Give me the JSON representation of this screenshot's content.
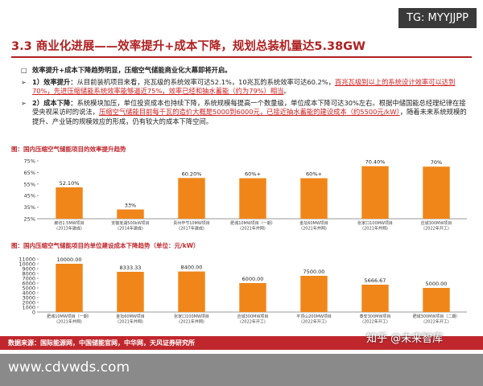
{
  "watermark_top": "TG: MYYJJPP",
  "header": {
    "title": "3.3 商业化进展——效率提升+成本下降，规划总装机量达5.38GW"
  },
  "bullets": [
    {
      "marker": "square",
      "segments": [
        {
          "text": "效率提升+成本下降趋势明显，压缩空气储能商业化大幕即将开启。",
          "style": "bold"
        }
      ]
    },
    {
      "marker": "arrow",
      "segments": [
        {
          "text": "1）效率提升：",
          "style": "bold"
        },
        {
          "text": "从目前装机项目来看，兆瓦级的系统效率可达52.1%，10兆瓦的系统效率可达60.2%，",
          "style": "normal"
        },
        {
          "text": "百兆瓦级别以上的系统设计效率可以达到70%，先进压缩储能系统效率能够逼近75%，效率已经和抽水蓄能（约为79%）相当",
          "style": "red"
        },
        {
          "text": "。",
          "style": "normal"
        }
      ]
    },
    {
      "marker": "arrow",
      "segments": [
        {
          "text": "2）成本下降：",
          "style": "bold"
        },
        {
          "text": "系统模块加压，单位投资成本也持续下降，系统规模每提高一个数量级，单位成本下降可达30%左右。根据中储国能总经理纪律在接受央视采访时的说法，",
          "style": "normal"
        },
        {
          "text": "压缩空气储能目前每千瓦的造价大概是5000到6000元，已接近抽水蓄能的建设成本（约5500元/kW）",
          "style": "red"
        },
        {
          "text": "，随着未来系统规模的提升、产业链的规模效应的形成，仍有较大的成本下降空间。",
          "style": "normal"
        }
      ]
    }
  ],
  "chart_data": [
    {
      "type": "bar",
      "title": "图：国内压缩空气储能项目的效率提升趋势",
      "color": "#f0861a",
      "categories": [
        "廊坊1.5MW项目\n(2013年建成)",
        "安徽芜湖500kW项目\n(2014年建成)",
        "贵州毕节10MW项目\n(2017年建成)",
        "肥城10MW项目（一期）\n(2021年并网)",
        "金坛60MW项目\n(2021年并网)",
        "张家口100MW项目\n(2021年并网)",
        "应城300MW项目\n(2022年开工)"
      ],
      "values": [
        52.1,
        33,
        60.2,
        60,
        60,
        70.4,
        70
      ],
      "value_labels": [
        "52.10%",
        "33%",
        "60.20%",
        "60%+",
        "60%+",
        "70.40%",
        "70%"
      ],
      "ylim": [
        25,
        75
      ],
      "yticks": [
        {
          "value": 25,
          "label": "25%"
        },
        {
          "value": 35,
          "label": "35%"
        },
        {
          "value": 45,
          "label": "45%"
        },
        {
          "value": 55,
          "label": "55%"
        },
        {
          "value": 65,
          "label": "65%"
        },
        {
          "value": 75,
          "label": "75%"
        }
      ]
    },
    {
      "type": "bar",
      "title": "图：国内压缩空气储能项目的单位建设成本下降趋势（单位：元/kW）",
      "color": "#f0861a",
      "categories": [
        "肥城10MW项目（一期）\n(2021年并网)",
        "金坛60MW项目\n(2021年并网)",
        "张家口100MW项目\n(2021年并网)",
        "应城300MW项目\n(2022年开工)",
        "平顶山200MW项目\n(2022年开工)",
        "泰安300MW项目\n(2022年开工)",
        "肥城300MW项目（二期）\n(2022年开工)"
      ],
      "values": [
        10000,
        8333.33,
        8400,
        6000,
        7500,
        5666.67,
        5000
      ],
      "value_labels": [
        "10000.00",
        "8333.33",
        "8400.00",
        "6000.00",
        "7500.00",
        "5666.67",
        "5000.00"
      ],
      "ylim": [
        0,
        11000
      ],
      "yticks": [
        0,
        1000,
        2000,
        3000,
        4000,
        5000,
        6000,
        7000,
        8000,
        9000,
        10000,
        11000
      ]
    }
  ],
  "footer": {
    "source": "数据来源：国际能源网，中国储能官网，中华网，天风证券研究所",
    "watermark": "知乎 @未来智库",
    "website": "www.cdvwds.com"
  }
}
